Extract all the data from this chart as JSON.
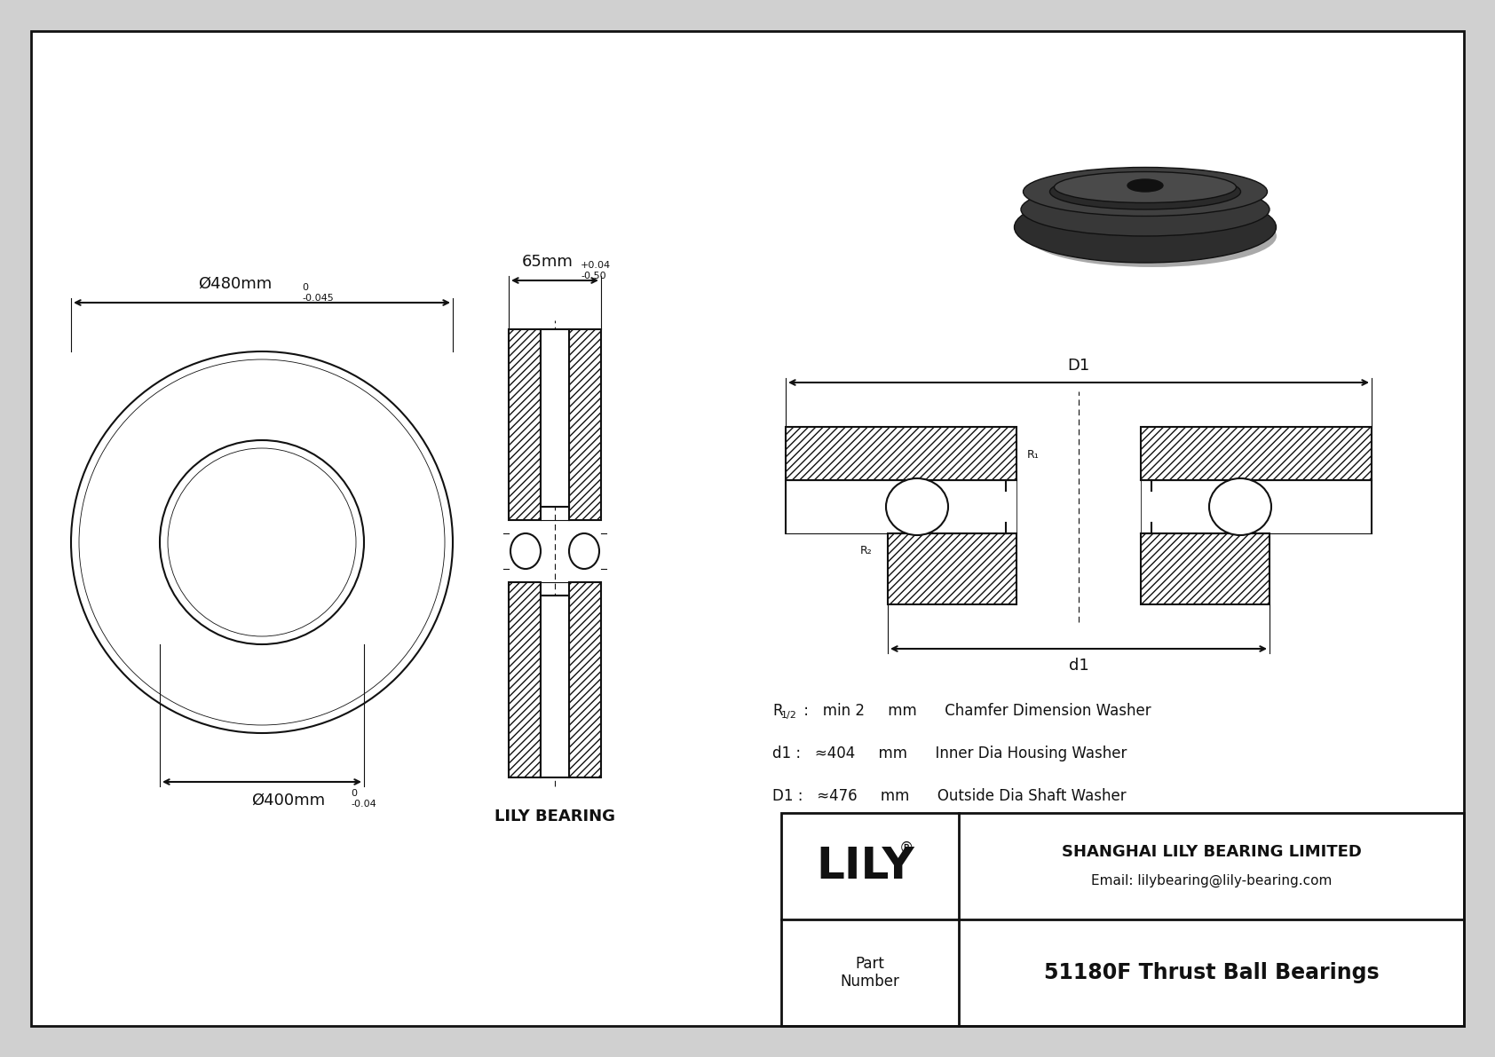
{
  "bg_color": "#d0d0d0",
  "line_color": "#111111",
  "title": "51180F Thrust Ball Bearings",
  "company": "SHANGHAI LILY BEARING LIMITED",
  "email": "Email: lilybearing@lily-bearing.com",
  "part_label": "Part\nNumber",
  "lily_text": "LILY",
  "lily_bearing_text": "LILY BEARING",
  "dim1_label": "Ø480mm",
  "dim1_tol_upper": "0",
  "dim1_tol_lower": "-0.045",
  "dim2_label": "Ø400mm",
  "dim2_tol_upper": "0",
  "dim2_tol_lower": "-0.04",
  "dim3_label": "65mm",
  "dim3_tol_upper": "+0.04",
  "dim3_tol_lower": "-0.50",
  "spec1_label": "R",
  "spec1_sub": "1/2",
  "spec1_rest": " :   min 2     mm      Chamfer Dimension Washer",
  "spec2": "d1 :   ≈404     mm      Inner Dia Housing Washer",
  "spec3": "D1 :   ≈476     mm      Outside Dia Shaft Washer",
  "D1_label": "D1",
  "d1_label": "d1",
  "R1_label": "R",
  "R1_sub": "1",
  "R2_label": "R",
  "R2_sub": "2"
}
